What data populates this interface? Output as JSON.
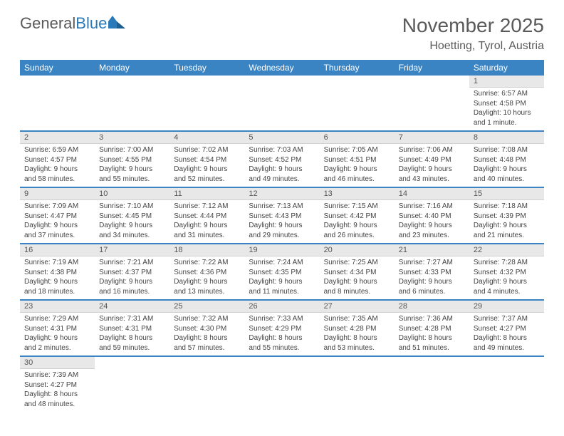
{
  "brand": {
    "part1": "General",
    "part2": "Blue"
  },
  "title": "November 2025",
  "location": "Hoetting, Tyrol, Austria",
  "colors": {
    "header_bg": "#3a84c4",
    "header_text": "#ffffff",
    "daynum_bg": "#e8e8e8",
    "text": "#444444",
    "brand_gray": "#5a5a5a",
    "brand_blue": "#2a7ab9"
  },
  "weekdays": [
    "Sunday",
    "Monday",
    "Tuesday",
    "Wednesday",
    "Thursday",
    "Friday",
    "Saturday"
  ],
  "weeks": [
    [
      null,
      null,
      null,
      null,
      null,
      null,
      {
        "n": "1",
        "sr": "Sunrise: 6:57 AM",
        "ss": "Sunset: 4:58 PM",
        "dl": "Daylight: 10 hours and 1 minute."
      }
    ],
    [
      {
        "n": "2",
        "sr": "Sunrise: 6:59 AM",
        "ss": "Sunset: 4:57 PM",
        "dl": "Daylight: 9 hours and 58 minutes."
      },
      {
        "n": "3",
        "sr": "Sunrise: 7:00 AM",
        "ss": "Sunset: 4:55 PM",
        "dl": "Daylight: 9 hours and 55 minutes."
      },
      {
        "n": "4",
        "sr": "Sunrise: 7:02 AM",
        "ss": "Sunset: 4:54 PM",
        "dl": "Daylight: 9 hours and 52 minutes."
      },
      {
        "n": "5",
        "sr": "Sunrise: 7:03 AM",
        "ss": "Sunset: 4:52 PM",
        "dl": "Daylight: 9 hours and 49 minutes."
      },
      {
        "n": "6",
        "sr": "Sunrise: 7:05 AM",
        "ss": "Sunset: 4:51 PM",
        "dl": "Daylight: 9 hours and 46 minutes."
      },
      {
        "n": "7",
        "sr": "Sunrise: 7:06 AM",
        "ss": "Sunset: 4:49 PM",
        "dl": "Daylight: 9 hours and 43 minutes."
      },
      {
        "n": "8",
        "sr": "Sunrise: 7:08 AM",
        "ss": "Sunset: 4:48 PM",
        "dl": "Daylight: 9 hours and 40 minutes."
      }
    ],
    [
      {
        "n": "9",
        "sr": "Sunrise: 7:09 AM",
        "ss": "Sunset: 4:47 PM",
        "dl": "Daylight: 9 hours and 37 minutes."
      },
      {
        "n": "10",
        "sr": "Sunrise: 7:10 AM",
        "ss": "Sunset: 4:45 PM",
        "dl": "Daylight: 9 hours and 34 minutes."
      },
      {
        "n": "11",
        "sr": "Sunrise: 7:12 AM",
        "ss": "Sunset: 4:44 PM",
        "dl": "Daylight: 9 hours and 31 minutes."
      },
      {
        "n": "12",
        "sr": "Sunrise: 7:13 AM",
        "ss": "Sunset: 4:43 PM",
        "dl": "Daylight: 9 hours and 29 minutes."
      },
      {
        "n": "13",
        "sr": "Sunrise: 7:15 AM",
        "ss": "Sunset: 4:42 PM",
        "dl": "Daylight: 9 hours and 26 minutes."
      },
      {
        "n": "14",
        "sr": "Sunrise: 7:16 AM",
        "ss": "Sunset: 4:40 PM",
        "dl": "Daylight: 9 hours and 23 minutes."
      },
      {
        "n": "15",
        "sr": "Sunrise: 7:18 AM",
        "ss": "Sunset: 4:39 PM",
        "dl": "Daylight: 9 hours and 21 minutes."
      }
    ],
    [
      {
        "n": "16",
        "sr": "Sunrise: 7:19 AM",
        "ss": "Sunset: 4:38 PM",
        "dl": "Daylight: 9 hours and 18 minutes."
      },
      {
        "n": "17",
        "sr": "Sunrise: 7:21 AM",
        "ss": "Sunset: 4:37 PM",
        "dl": "Daylight: 9 hours and 16 minutes."
      },
      {
        "n": "18",
        "sr": "Sunrise: 7:22 AM",
        "ss": "Sunset: 4:36 PM",
        "dl": "Daylight: 9 hours and 13 minutes."
      },
      {
        "n": "19",
        "sr": "Sunrise: 7:24 AM",
        "ss": "Sunset: 4:35 PM",
        "dl": "Daylight: 9 hours and 11 minutes."
      },
      {
        "n": "20",
        "sr": "Sunrise: 7:25 AM",
        "ss": "Sunset: 4:34 PM",
        "dl": "Daylight: 9 hours and 8 minutes."
      },
      {
        "n": "21",
        "sr": "Sunrise: 7:27 AM",
        "ss": "Sunset: 4:33 PM",
        "dl": "Daylight: 9 hours and 6 minutes."
      },
      {
        "n": "22",
        "sr": "Sunrise: 7:28 AM",
        "ss": "Sunset: 4:32 PM",
        "dl": "Daylight: 9 hours and 4 minutes."
      }
    ],
    [
      {
        "n": "23",
        "sr": "Sunrise: 7:29 AM",
        "ss": "Sunset: 4:31 PM",
        "dl": "Daylight: 9 hours and 2 minutes."
      },
      {
        "n": "24",
        "sr": "Sunrise: 7:31 AM",
        "ss": "Sunset: 4:31 PM",
        "dl": "Daylight: 8 hours and 59 minutes."
      },
      {
        "n": "25",
        "sr": "Sunrise: 7:32 AM",
        "ss": "Sunset: 4:30 PM",
        "dl": "Daylight: 8 hours and 57 minutes."
      },
      {
        "n": "26",
        "sr": "Sunrise: 7:33 AM",
        "ss": "Sunset: 4:29 PM",
        "dl": "Daylight: 8 hours and 55 minutes."
      },
      {
        "n": "27",
        "sr": "Sunrise: 7:35 AM",
        "ss": "Sunset: 4:28 PM",
        "dl": "Daylight: 8 hours and 53 minutes."
      },
      {
        "n": "28",
        "sr": "Sunrise: 7:36 AM",
        "ss": "Sunset: 4:28 PM",
        "dl": "Daylight: 8 hours and 51 minutes."
      },
      {
        "n": "29",
        "sr": "Sunrise: 7:37 AM",
        "ss": "Sunset: 4:27 PM",
        "dl": "Daylight: 8 hours and 49 minutes."
      }
    ],
    [
      {
        "n": "30",
        "sr": "Sunrise: 7:39 AM",
        "ss": "Sunset: 4:27 PM",
        "dl": "Daylight: 8 hours and 48 minutes."
      },
      null,
      null,
      null,
      null,
      null,
      null
    ]
  ]
}
